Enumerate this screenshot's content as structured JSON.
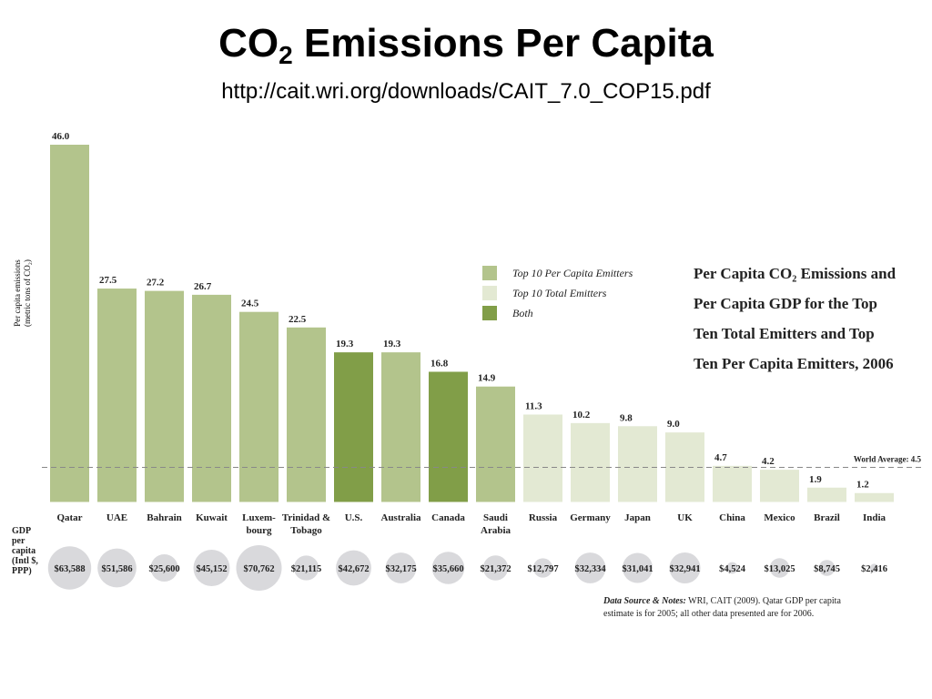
{
  "slide": {
    "title_main": "CO",
    "title_sub": "2",
    "title_rest": " Emissions Per Capita",
    "url": "http://cait.wri.org/downloads/CAIT_7.0_COP15.pdf"
  },
  "chart_data": {
    "type": "bar",
    "title_lines": [
      "Per Capita CO₂ Emissions and",
      "Per Capita GDP for the Top",
      "Ten Total Emitters and Top",
      "Ten Per Capita Emitters, 2006"
    ],
    "ylabel_lines": [
      "Per capita emissions",
      "(metric tons of CO₂)"
    ],
    "ylim": [
      0,
      46
    ],
    "categories": [
      [
        "Qatar"
      ],
      [
        "UAE"
      ],
      [
        "Bahrain"
      ],
      [
        "Kuwait"
      ],
      [
        "Luxem-",
        "bourg"
      ],
      [
        "Trinidad &",
        "Tobago"
      ],
      [
        "U.S."
      ],
      [
        "Australia"
      ],
      [
        "Canada"
      ],
      [
        "Saudi",
        "Arabia"
      ],
      [
        "Russia"
      ],
      [
        "Germany"
      ],
      [
        "Japan"
      ],
      [
        "UK"
      ],
      [
        "China"
      ],
      [
        "Mexico"
      ],
      [
        "Brazil"
      ],
      [
        "India"
      ]
    ],
    "values": [
      46.0,
      27.5,
      27.2,
      26.7,
      24.5,
      22.5,
      19.3,
      19.3,
      16.8,
      14.9,
      11.3,
      10.2,
      9.8,
      9.0,
      4.7,
      4.2,
      1.9,
      1.2
    ],
    "value_labels": [
      "46.0",
      "27.5",
      "27.2",
      "26.7",
      "24.5",
      "22.5",
      "19.3",
      "19.3",
      "16.8",
      "14.9",
      "11.3",
      "10.2",
      "9.8",
      "9.0",
      "4.7",
      "4.2",
      "1.9",
      "1.2"
    ],
    "groups": [
      "per_capita",
      "per_capita",
      "per_capita",
      "per_capita",
      "per_capita",
      "per_capita",
      "both",
      "per_capita",
      "both",
      "per_capita",
      "total",
      "total",
      "total",
      "total",
      "total",
      "total",
      "total",
      "total"
    ],
    "legend": [
      {
        "key": "per_capita",
        "label": "Top 10 Per Capita Emitters",
        "color": "#b3c48c"
      },
      {
        "key": "total",
        "label": "Top 10 Total Emitters",
        "color": "#e3e9d3"
      },
      {
        "key": "both",
        "label": "Both",
        "color": "#819e48"
      }
    ],
    "legend_position": "top-right",
    "reference_line": {
      "value": 4.5,
      "label": "World Average: 4.5"
    },
    "gdp": {
      "label_lines": [
        "GDP",
        "per",
        "capita",
        "(Intl $,",
        "PPP)"
      ],
      "values": [
        63588,
        51586,
        25600,
        45152,
        70762,
        21115,
        42672,
        32175,
        35660,
        21372,
        12797,
        32334,
        31041,
        32941,
        4524,
        13025,
        8745,
        2416
      ],
      "labels": [
        "$63,588",
        "$51,586",
        "$25,600",
        "$45,152",
        "$70,762",
        "$21,115",
        "$42,672",
        "$32,175",
        "$35,660",
        "$21,372",
        "$12,797",
        "$32,334",
        "$31,041",
        "$32,941",
        "$4,524",
        "$13,025",
        "$8,745",
        "$2,416"
      ],
      "bubble_color": "#d9d9dc"
    },
    "notes_lead": "Data Source & Notes:",
    "notes_lines": [
      " WRI, CAIT (2009). Qatar GDP per capita",
      "estimate is for 2005; all other data presented are for 2006."
    ],
    "grid": false
  }
}
